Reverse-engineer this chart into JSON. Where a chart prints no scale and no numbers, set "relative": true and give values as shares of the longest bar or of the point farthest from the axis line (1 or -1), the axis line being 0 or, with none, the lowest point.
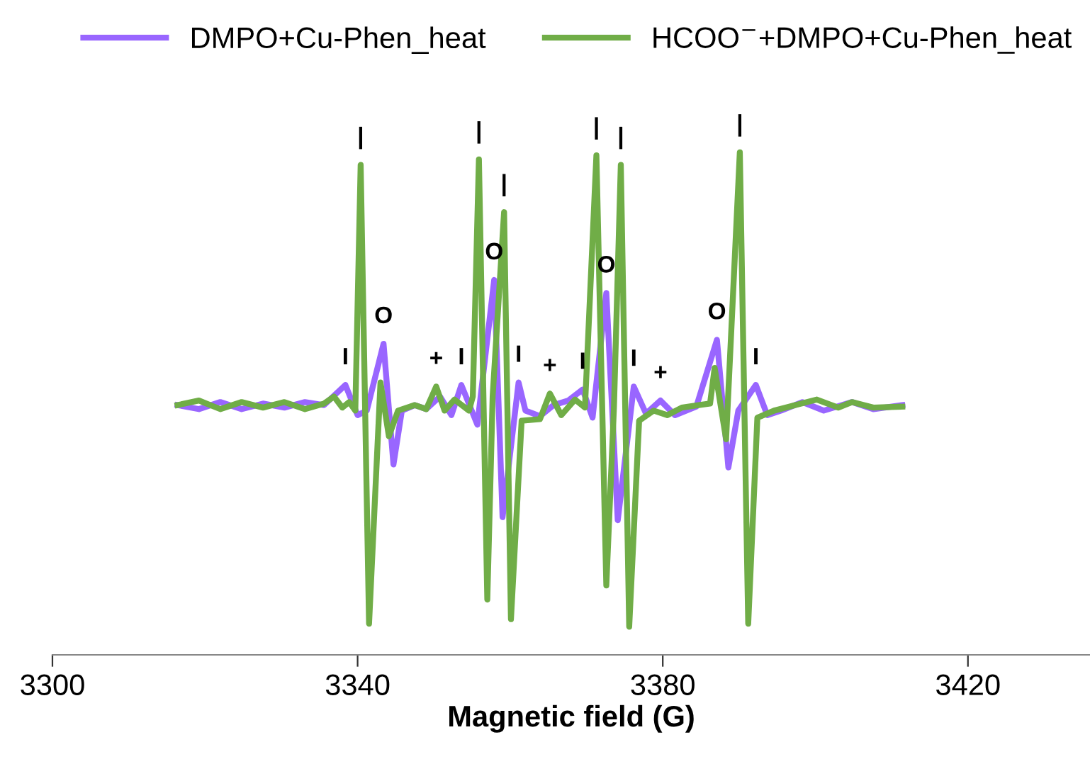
{
  "chart_data": {
    "type": "line",
    "relative": true,
    "xlabel": "Magnetic field (G)",
    "xlim": [
      3300,
      3436
    ],
    "xticks": [
      3300,
      3340,
      3380,
      3420
    ],
    "tick_labels": "x",
    "grid": false,
    "legend": "top",
    "marker": "none",
    "line_style": "solid",
    "series": [
      {
        "name": "DMPO+Cu-Phen_heat",
        "color": "#9966ff",
        "x": [
          3316.4,
          3319.2,
          3322.0,
          3324.8,
          3327.6,
          3330.4,
          3333.1,
          3335.6,
          3338.4,
          3340.0,
          3341.2,
          3343.4,
          3344.7,
          3345.8,
          3347.5,
          3349.0,
          3350.8,
          3352.3,
          3353.6,
          3355.7,
          3357.9,
          3359.0,
          3361.1,
          3362.0,
          3363.9,
          3365.7,
          3367.6,
          3369.5,
          3370.8,
          3372.6,
          3374.1,
          3376.2,
          3377.8,
          3379.7,
          3381.6,
          3384.4,
          3387.1,
          3388.6,
          3389.9,
          3392.2,
          3393.7,
          3395.5,
          3398.3,
          3401.1,
          3404.8,
          3407.6,
          3411.4
        ],
        "values": [
          0.497,
          0.489,
          0.503,
          0.489,
          0.5,
          0.492,
          0.503,
          0.497,
          0.537,
          0.477,
          0.486,
          0.619,
          0.379,
          0.486,
          0.497,
          0.489,
          0.514,
          0.477,
          0.537,
          0.458,
          0.746,
          0.274,
          0.542,
          0.486,
          0.475,
          0.497,
          0.506,
          0.528,
          0.472,
          0.72,
          0.268,
          0.534,
          0.48,
          0.506,
          0.477,
          0.494,
          0.627,
          0.373,
          0.486,
          0.537,
          0.477,
          0.486,
          0.503,
          0.486,
          0.503,
          0.489,
          0.497
        ]
      },
      {
        "name": "HCOO$^{−}$+DMPO+Cu-Phen_heat",
        "color": "#70ad47",
        "x": [
          3316.4,
          3319.2,
          3322.0,
          3324.8,
          3327.6,
          3330.4,
          3333.1,
          3335.6,
          3336.9,
          3338.0,
          3338.9,
          3339.7,
          3340.4,
          3341.5,
          3343.0,
          3344.1,
          3345.3,
          3347.5,
          3349.0,
          3350.3,
          3351.4,
          3352.7,
          3354.6,
          3355.1,
          3355.9,
          3357.0,
          3357.7,
          3359.2,
          3360.1,
          3361.5,
          3363.9,
          3365.2,
          3366.7,
          3368.5,
          3369.8,
          3371.3,
          3372.6,
          3373.6,
          3374.5,
          3375.6,
          3376.9,
          3378.8,
          3380.6,
          3382.5,
          3384.7,
          3386.2,
          3386.8,
          3388.3,
          3390.1,
          3391.2,
          3392.4,
          3394.6,
          3397.4,
          3400.2,
          3403.0,
          3404.8,
          3407.6,
          3411.4
        ],
        "values": [
          0.497,
          0.506,
          0.489,
          0.503,
          0.492,
          0.503,
          0.489,
          0.5,
          0.514,
          0.492,
          0.503,
          0.486,
          0.975,
          0.062,
          0.542,
          0.435,
          0.486,
          0.497,
          0.489,
          0.534,
          0.486,
          0.508,
          0.486,
          0.514,
          0.986,
          0.11,
          0.514,
          0.881,
          0.071,
          0.466,
          0.469,
          0.52,
          0.477,
          0.508,
          0.492,
          0.994,
          0.138,
          0.492,
          0.975,
          0.056,
          0.466,
          0.486,
          0.477,
          0.492,
          0.497,
          0.5,
          0.571,
          0.429,
          1.0,
          0.062,
          0.472,
          0.486,
          0.497,
          0.508,
          0.492,
          0.503,
          0.492,
          0.494
        ]
      }
    ],
    "annotations": [
      {
        "text": "I",
        "x": 3338.4,
        "y": 0.537
      },
      {
        "text": "O",
        "x": 3343.4,
        "y": 0.619
      },
      {
        "text": "+",
        "x": 3350.3,
        "y": 0.534
      },
      {
        "text": "I",
        "x": 3353.6,
        "y": 0.537
      },
      {
        "text": "O",
        "x": 3357.9,
        "y": 0.746
      },
      {
        "text": "I",
        "x": 3361.1,
        "y": 0.542
      },
      {
        "text": "+",
        "x": 3365.2,
        "y": 0.52
      },
      {
        "text": "I",
        "x": 3369.5,
        "y": 0.528
      },
      {
        "text": "O",
        "x": 3372.6,
        "y": 0.72
      },
      {
        "text": "I",
        "x": 3376.2,
        "y": 0.534
      },
      {
        "text": "+",
        "x": 3379.7,
        "y": 0.506
      },
      {
        "text": "O",
        "x": 3387.1,
        "y": 0.627
      },
      {
        "text": "I",
        "x": 3392.2,
        "y": 0.537
      },
      {
        "text": "|",
        "x": 3340.4,
        "y": 0.975
      },
      {
        "text": "|",
        "x": 3355.9,
        "y": 0.986
      },
      {
        "text": "|",
        "x": 3359.2,
        "y": 0.881
      },
      {
        "text": "|",
        "x": 3371.3,
        "y": 0.994
      },
      {
        "text": "|",
        "x": 3374.5,
        "y": 0.975
      },
      {
        "text": "|",
        "x": 3390.1,
        "y": 1.0
      }
    ]
  }
}
